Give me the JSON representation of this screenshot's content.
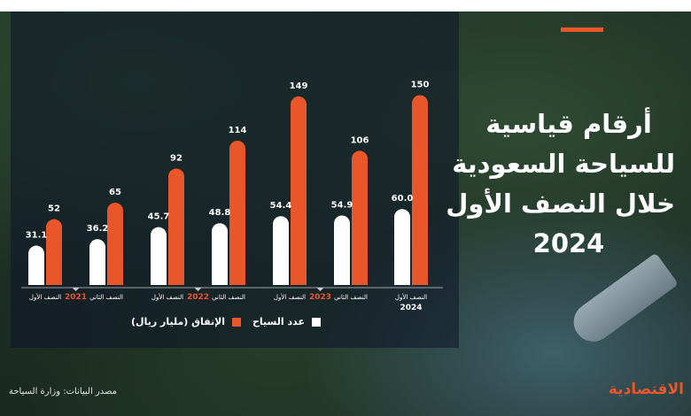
{
  "title_lines": [
    "أرقام قياسية",
    "للسياحة السعودية",
    "خلال النصف الأول",
    "2024"
  ],
  "accent_color": "#e8562a",
  "legend": {
    "spending": "الإنفاق (مليار ريال)",
    "tourists": "عدد السياح"
  },
  "source": "مصدر البيانات: وزارة السياحة",
  "logo": "الاقتصادية",
  "chart_data": {
    "type": "bar",
    "categories": [
      "النصف الأول",
      "النصف الثاني",
      "النصف الأول",
      "النصف الثاني",
      "النصف الأول",
      "النصف الثاني",
      "النصف الأول"
    ],
    "years": [
      {
        "label": "2021",
        "start": 0,
        "end": 1
      },
      {
        "label": "2022",
        "start": 2,
        "end": 3
      },
      {
        "label": "2023",
        "start": 4,
        "end": 5
      },
      {
        "label": "2024",
        "start": 6,
        "end": 6
      }
    ],
    "series": [
      {
        "key": "tourists",
        "color": "#ffffff",
        "values": [
          "31.1",
          "36.2",
          "45.7",
          "48.8",
          "54.4",
          "54.9",
          "60.0"
        ]
      },
      {
        "key": "spending",
        "color": "#e8562a",
        "values": [
          "52",
          "65",
          "92",
          "114",
          "149",
          "106",
          "150"
        ]
      }
    ]
  }
}
